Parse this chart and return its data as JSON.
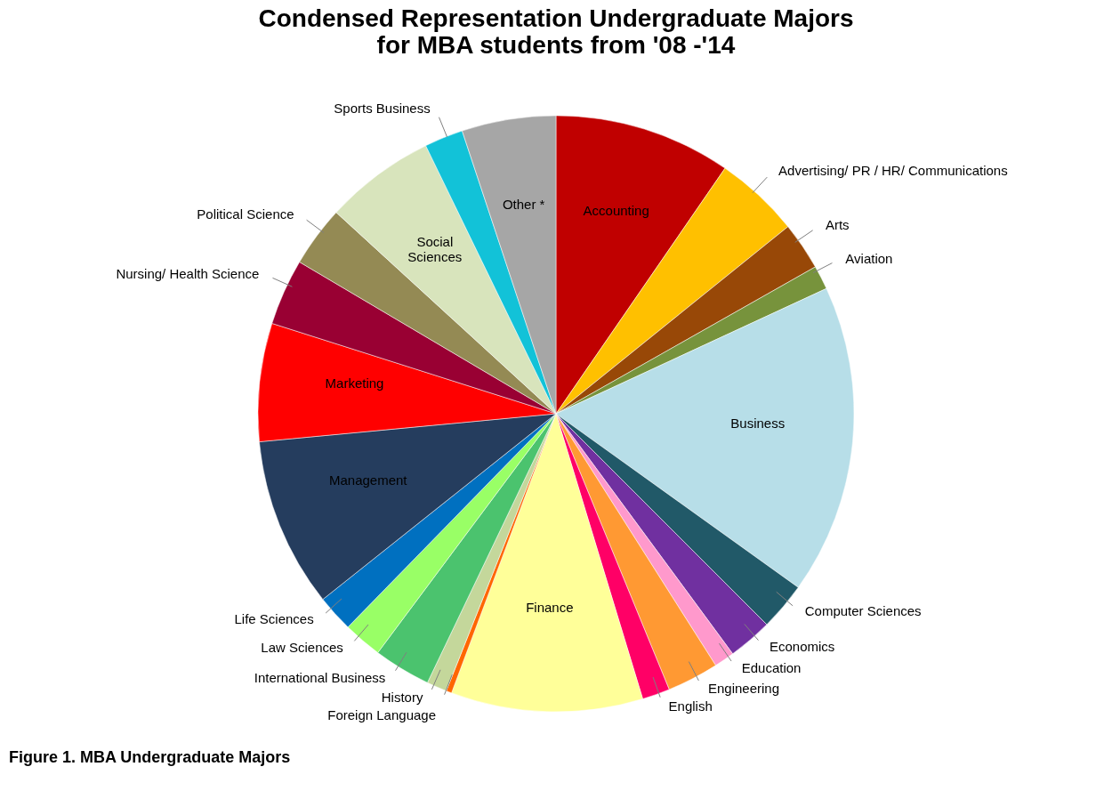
{
  "chart_data": {
    "type": "pie",
    "title": "Condensed Representation Undergraduate Majors\nfor MBA students from '08 -'14",
    "categories": [
      "Accounting",
      "Advertising/ PR / HR/ Communications",
      "Arts",
      "Aviation",
      "Business",
      "Computer Sciences",
      "Economics",
      "Education",
      "Engineering",
      "English",
      "Finance",
      "Foreign Language",
      "History",
      "International Business",
      "Law Sciences",
      "Life Sciences",
      "Management",
      "Marketing",
      "Nursing/ Health Science",
      "Political Science",
      "Social Sciences",
      "Sports Business",
      "Other *"
    ],
    "values": [
      9.6,
      4.6,
      2.6,
      1.3,
      16.8,
      2.6,
      2.4,
      1.1,
      2.8,
      1.5,
      10.4,
      0.3,
      1.1,
      3.1,
      2.1,
      2.0,
      9.2,
      6.4,
      3.6,
      3.3,
      6.0,
      2.1,
      5.1
    ],
    "colors": [
      "#c00000",
      "#ffc000",
      "#984807",
      "#77933c",
      "#b7dee8",
      "#215968",
      "#7030a0",
      "#ff99cc",
      "#ff9933",
      "#ff0066",
      "#ffff99",
      "#ff6600",
      "#c4d79b",
      "#4bc36e",
      "#99ff66",
      "#0070c0",
      "#253d5e",
      "#ff0000",
      "#990033",
      "#948a54",
      "#d8e4bc",
      "#12c2d8",
      "#a6a6a6"
    ],
    "annotations": [
      "Figure 1. MBA Undergraduate Majors"
    ],
    "legend": false
  }
}
